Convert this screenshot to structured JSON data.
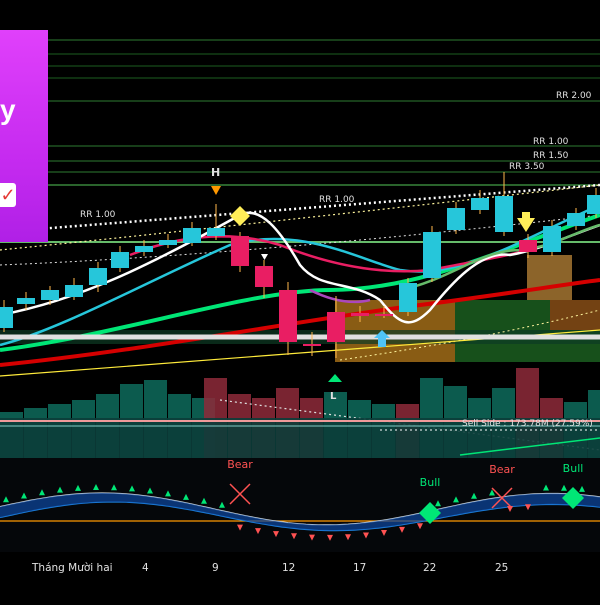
{
  "promo": {
    "text": "y",
    "check_icon": "check-icon"
  },
  "levels": [
    {
      "label": "RR 2.00",
      "value": 2.0
    },
    {
      "label": "RR 1.00",
      "value": 1.0
    },
    {
      "label": "RR 1.50",
      "value": 1.5
    },
    {
      "label": "RR 3.50",
      "value": 3.5
    },
    {
      "label": "RR 1.00",
      "value": 1.0
    },
    {
      "label": "RR 1.00",
      "value": 1.0
    }
  ],
  "markers": {
    "high": "H",
    "low": "L"
  },
  "sell_side": "Sell Side : 173.78M (27.59%)",
  "oscillator": {
    "signals": [
      {
        "label": "Bear",
        "type": "bear"
      },
      {
        "label": "Bull",
        "type": "bull"
      },
      {
        "label": "Bear",
        "type": "bear"
      },
      {
        "label": "Bull",
        "type": "bull"
      }
    ]
  },
  "x_axis": {
    "labels": [
      "Tháng Mười hai",
      "4",
      "9",
      "12",
      "17",
      "22",
      "25"
    ]
  },
  "colors": {
    "background": "#000000",
    "bull_candle": "#26c6da",
    "bear_candle": "#e91e63",
    "green_ma": "#00e676",
    "red_ma": "#d50000",
    "white_line": "#ffffff",
    "promo": "#e040fb"
  }
}
